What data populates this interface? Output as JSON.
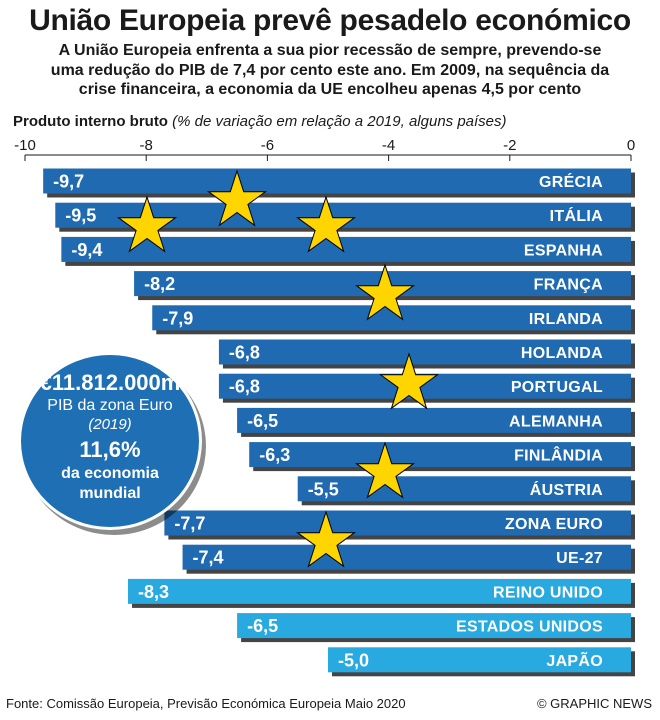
{
  "title": "União Europeia prevê pesadelo económico",
  "subtitle": [
    "A União Europeia enfrenta a sua pior recessão de sempre, prevendo-se",
    "uma redução do PIB de 7,4 por cento este ano. Em 2009, na sequência da",
    "crise financeira, a economia da UE encolheu apenas 4,5 por cento"
  ],
  "axis_heading": {
    "bold": "Produto interno bruto",
    "italic": "(% de variação em relação a 2019, alguns países)"
  },
  "colors": {
    "eu_bar": "#1f6ab0",
    "other_bar": "#28a9e0",
    "star": "#ffd500",
    "infobox": "#1e6fb3"
  },
  "chart_data": {
    "type": "bar",
    "orientation": "horizontal",
    "xlim": [
      -10,
      0
    ],
    "ticks": [
      -10,
      -8,
      -6,
      -4,
      -2,
      0
    ],
    "tick_labels": [
      "-10",
      "-8",
      "-6",
      "-4",
      "-2",
      "0"
    ],
    "grid": false,
    "categories": [
      "GRÉCIA",
      "ITÁLIA",
      "ESPANHA",
      "FRANÇA",
      "IRLANDA",
      "HOLANDA",
      "PORTUGAL",
      "ALEMANHA",
      "FINLÂNDIA",
      "ÁUSTRIA",
      "ZONA EURO",
      "UE-27",
      "REINO UNIDO",
      "ESTADOS UNIDOS",
      "JAPÃO"
    ],
    "values": [
      -9.7,
      -9.5,
      -9.4,
      -8.2,
      -7.9,
      -6.8,
      -6.8,
      -6.5,
      -6.3,
      -5.5,
      -7.7,
      -7.4,
      -8.3,
      -6.5,
      -5.0
    ],
    "value_labels": [
      "-9,7",
      "-9,5",
      "-9,4",
      "-8,2",
      "-7,9",
      "-6,8",
      "-6,8",
      "-6,5",
      "-6,3",
      "-5,5",
      "-7,7",
      "-7,4",
      "-8,3",
      "-6,5",
      "-5,0"
    ],
    "group": [
      "eu",
      "eu",
      "eu",
      "eu",
      "eu",
      "eu",
      "eu",
      "eu",
      "eu",
      "eu",
      "eu",
      "eu",
      "other",
      "other",
      "other"
    ]
  },
  "infobox": {
    "amount": "€11.812.000m",
    "line2": "PIB da zona Euro",
    "line3": "(2019)",
    "percent": "11,6%",
    "line5": "da economia",
    "line6": "mundial"
  },
  "footer": {
    "source": "Fonte: Comissão Europeia, Previsão Económica Europeia Maio 2020",
    "credit": "© GRAPHIC NEWS"
  }
}
